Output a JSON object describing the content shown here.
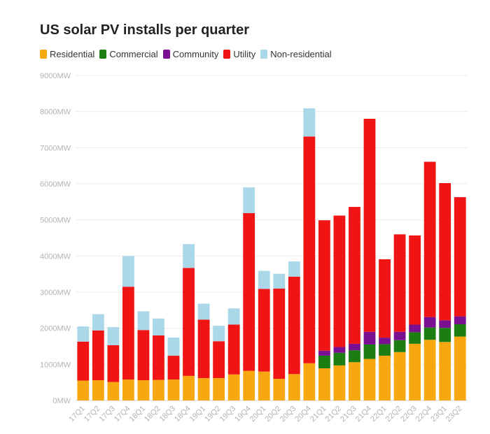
{
  "chart_data": {
    "type": "bar",
    "stacked": true,
    "title": "US solar PV installs per quarter",
    "xlabel": "",
    "ylabel": "",
    "ylim": [
      0,
      9000
    ],
    "yticks": [
      "0MW",
      "1000MW",
      "2000MW",
      "3000MW",
      "4000MW",
      "5000MW",
      "6000MW",
      "7000MW",
      "8000MW",
      "9000MW"
    ],
    "grid": true,
    "legend_position": "top-left",
    "categories": [
      "17Q1",
      "17Q2",
      "17Q3",
      "17Q4",
      "18Q1",
      "18Q2",
      "18Q3",
      "18Q4",
      "19Q1",
      "19Q2",
      "19Q3",
      "19Q4",
      "20Q1",
      "20Q2",
      "20Q3",
      "20Q4",
      "21Q1",
      "21Q2",
      "21Q3",
      "21Q4",
      "22Q1",
      "22Q2",
      "22Q3",
      "22Q4",
      "23Q1",
      "23Q2"
    ],
    "series": [
      {
        "name": "Residential",
        "color": "#f7a70f",
        "values": [
          550,
          560,
          510,
          580,
          560,
          570,
          580,
          680,
          620,
          620,
          720,
          820,
          800,
          600,
          730,
          1030,
          890,
          970,
          1060,
          1150,
          1240,
          1340,
          1570,
          1680,
          1620,
          1770
        ]
      },
      {
        "name": "Commercial",
        "color": "#1b7d12",
        "values": [
          0,
          0,
          0,
          0,
          0,
          0,
          0,
          0,
          0,
          0,
          0,
          0,
          0,
          0,
          0,
          0,
          350,
          350,
          330,
          400,
          320,
          330,
          320,
          340,
          390,
          340
        ]
      },
      {
        "name": "Community",
        "color": "#7a1091",
        "values": [
          0,
          0,
          0,
          0,
          0,
          0,
          0,
          0,
          0,
          0,
          0,
          0,
          0,
          0,
          0,
          0,
          140,
          160,
          180,
          350,
          180,
          230,
          210,
          290,
          210,
          220
        ]
      },
      {
        "name": "Utility",
        "color": "#f01414",
        "values": [
          1080,
          1380,
          1020,
          2570,
          1390,
          1230,
          660,
          2990,
          1620,
          1020,
          1380,
          4370,
          2290,
          2500,
          2700,
          6280,
          3610,
          3640,
          3790,
          5900,
          2170,
          2700,
          2470,
          4300,
          3800,
          3300
        ]
      },
      {
        "name": "Non-residential",
        "color": "#aad8e8",
        "values": [
          420,
          450,
          500,
          850,
          520,
          470,
          500,
          660,
          440,
          430,
          450,
          710,
          500,
          410,
          420,
          780,
          0,
          0,
          0,
          0,
          0,
          0,
          0,
          0,
          0,
          0
        ]
      }
    ]
  }
}
